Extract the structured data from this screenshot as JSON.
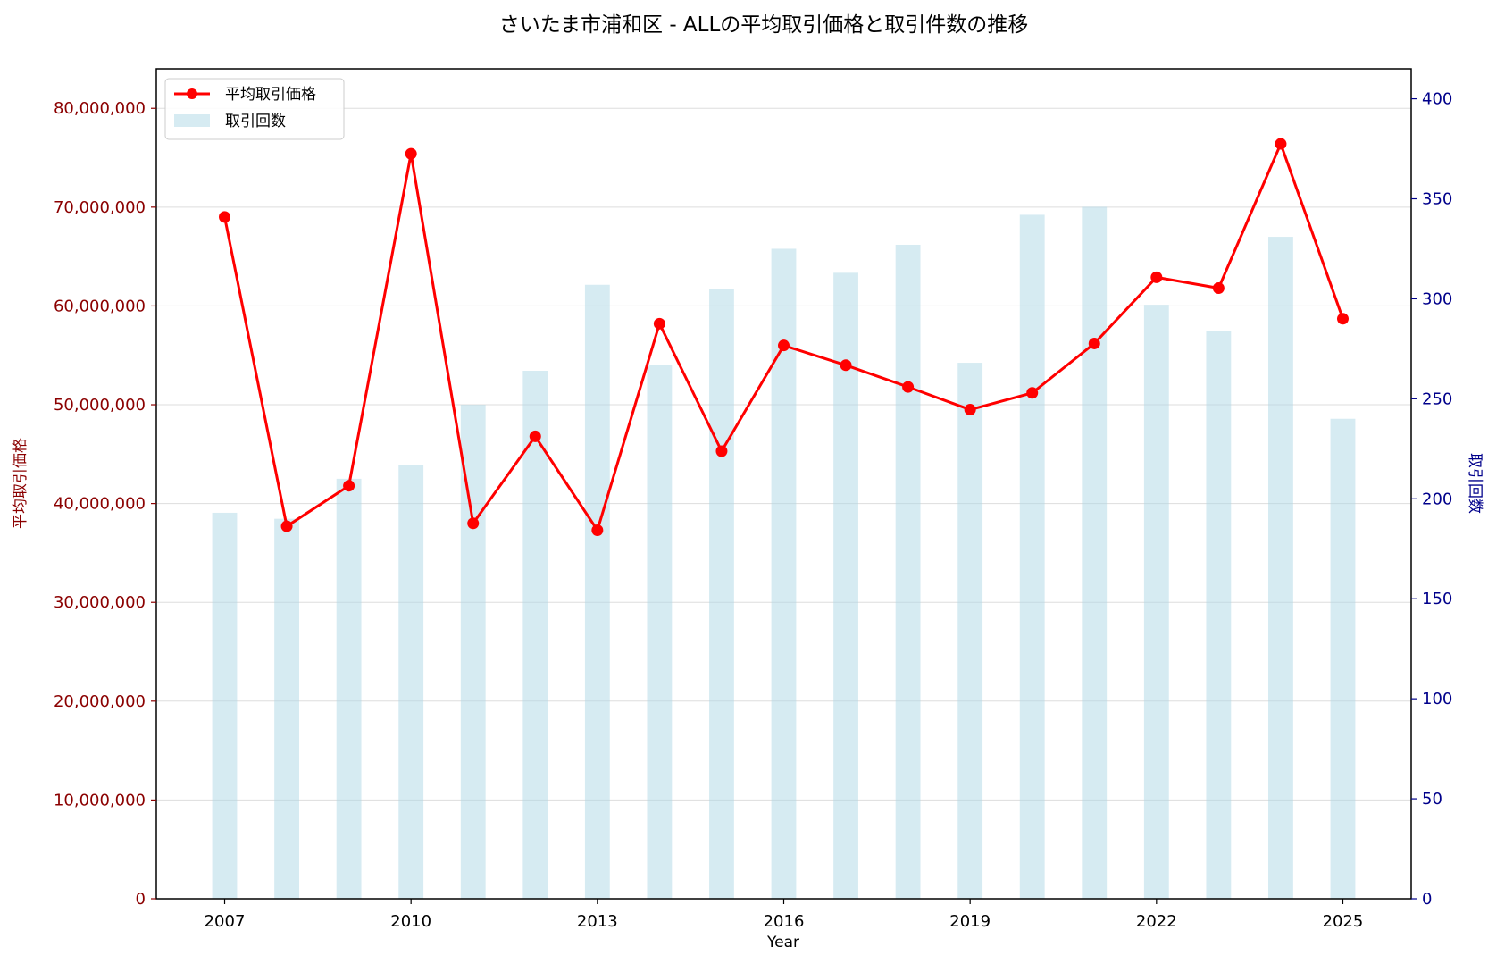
{
  "chart_data": {
    "type": "bar",
    "title": "さいたま市浦和区 - ALLの平均取引価格と取引件数の推移",
    "xlabel": "Year",
    "ylabel_left": "平均取引価格",
    "ylabel_right": "取引回数",
    "x": [
      2007,
      2008,
      2009,
      2010,
      2011,
      2012,
      2013,
      2014,
      2015,
      2016,
      2017,
      2018,
      2019,
      2020,
      2021,
      2022,
      2023,
      2024,
      2025
    ],
    "xticks": [
      "2007",
      "2010",
      "2013",
      "2016",
      "2019",
      "2022",
      "2025"
    ],
    "xtick_values": [
      2007,
      2010,
      2013,
      2016,
      2019,
      2022,
      2025
    ],
    "xlim": [
      2005.9,
      2026.1
    ],
    "series": [
      {
        "name": "平均取引価格",
        "kind": "line",
        "axis": "left",
        "color": "#ff0000",
        "values": [
          69000000,
          37700000,
          41800000,
          75400000,
          38000000,
          46800000,
          37300000,
          58200000,
          45300000,
          56000000,
          54000000,
          51800000,
          49500000,
          51200000,
          56200000,
          62900000,
          61800000,
          76400000,
          58700000
        ]
      },
      {
        "name": "取引回数",
        "kind": "bar",
        "axis": "right",
        "color": "#add8e6",
        "values": [
          193,
          190,
          210,
          217,
          247,
          264,
          307,
          267,
          305,
          325,
          313,
          327,
          268,
          342,
          346,
          297,
          284,
          331,
          240
        ]
      }
    ],
    "ylim_left": [
      0,
      84000000
    ],
    "yticks_left": [
      "0",
      "10,000,000",
      "20,000,000",
      "30,000,000",
      "40,000,000",
      "50,000,000",
      "60,000,000",
      "70,000,000",
      "80,000,000"
    ],
    "ytick_values_left": [
      0,
      10000000,
      20000000,
      30000000,
      40000000,
      50000000,
      60000000,
      70000000,
      80000000
    ],
    "ylim_right": [
      0,
      415
    ],
    "yticks_right": [
      "0",
      "50",
      "100",
      "150",
      "200",
      "250",
      "300",
      "350",
      "400"
    ],
    "ytick_values_right": [
      0,
      50,
      100,
      150,
      200,
      250,
      300,
      350,
      400
    ],
    "grid": "horizontal",
    "legend": "top-left",
    "colors": {
      "left_axis": "#8b0000",
      "right_axis": "#00008b",
      "line": "#ff0000",
      "bars": "#add8e6"
    }
  }
}
